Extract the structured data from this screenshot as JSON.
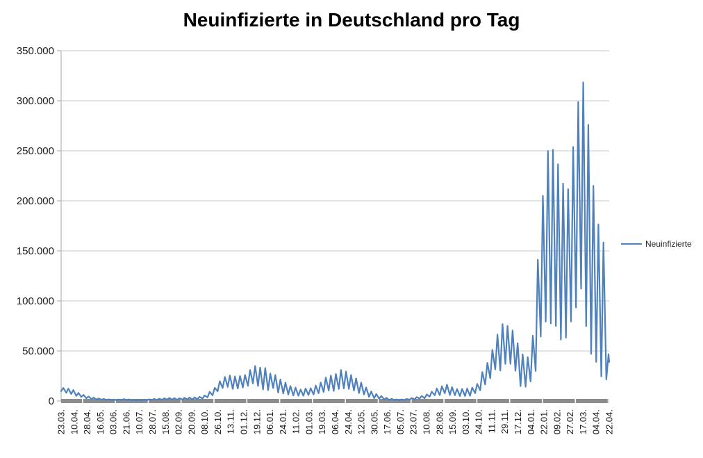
{
  "title": "Neuinfizierte in Deutschland pro Tag",
  "legend": {
    "label": "Neuinfizierte"
  },
  "colors": {
    "series": "#4F81BD",
    "gridline": "#C9C9C9",
    "axis_line": "#A6A6A6",
    "x_axis_band": "#8C8C8C",
    "tick_text": "#1a1a1a",
    "title_text": "#000000",
    "background": "#FFFFFF"
  },
  "chart_data": {
    "type": "line",
    "title": "Neuinfizierte in Deutschland pro Tag",
    "ylabel": "",
    "xlabel": "",
    "ylim": [
      0,
      350000
    ],
    "y_tick_step": 50000,
    "y_tick_labels": [
      "0",
      "50.000",
      "100.000",
      "150.000",
      "200.000",
      "250.000",
      "300.000",
      "350.000"
    ],
    "x_tick_labels": [
      "23.03.",
      "10.04.",
      "28.04.",
      "16.05.",
      "03.06.",
      "21.06.",
      "10.07.",
      "28.07.",
      "15.08.",
      "02.09.",
      "20.09.",
      "08.10.",
      "26.10.",
      "13.11.",
      "01.12.",
      "19.12.",
      "06.01.",
      "24.01.",
      "11.02.",
      "01.03.",
      "19.03.",
      "06.04.",
      "24.04.",
      "12.05.",
      "30.05.",
      "17.06.",
      "05.07.",
      "23.07.",
      "10.08.",
      "28.08.",
      "15.09.",
      "03.10.",
      "24.10.",
      "11.11.",
      "29.11.",
      "17.12.",
      "04.01.",
      "22.01.",
      "09.02.",
      "27.02.",
      "17.03.",
      "04.04.",
      "22.04."
    ],
    "grid": "horizontal",
    "legend_position": "right",
    "series": [
      {
        "name": "Neuinfizierte",
        "weekly_min_max": [
          [
            9800,
            13100
          ],
          [
            8200,
            12400
          ],
          [
            7100,
            11000
          ],
          [
            5100,
            8100
          ],
          [
            4000,
            6100
          ],
          [
            2800,
            4500
          ],
          [
            2000,
            3300
          ],
          [
            1500,
            2500
          ],
          [
            1300,
            2100
          ],
          [
            1100,
            1700
          ],
          [
            900,
            1400
          ],
          [
            800,
            1500
          ],
          [
            900,
            1900
          ],
          [
            800,
            1600
          ],
          [
            700,
            1200
          ],
          [
            600,
            1100
          ],
          [
            700,
            1300
          ],
          [
            800,
            1700
          ],
          [
            1000,
            2100
          ],
          [
            1100,
            2300
          ],
          [
            1200,
            2700
          ],
          [
            1400,
            3100
          ],
          [
            1300,
            2900
          ],
          [
            1200,
            2800
          ],
          [
            1400,
            3200
          ],
          [
            1600,
            3500
          ],
          [
            1600,
            3600
          ],
          [
            1900,
            4200
          ],
          [
            2400,
            5600
          ],
          [
            3600,
            9200
          ],
          [
            5700,
            13200
          ],
          [
            9700,
            19800
          ],
          [
            13000,
            24000
          ],
          [
            14100,
            25500
          ],
          [
            12000,
            24600
          ],
          [
            12400,
            25000
          ],
          [
            13500,
            26000
          ],
          [
            15200,
            31000
          ],
          [
            17500,
            35000
          ],
          [
            15000,
            33500
          ],
          [
            11500,
            33000
          ],
          [
            10800,
            27500
          ],
          [
            13000,
            26000
          ],
          [
            8500,
            21500
          ],
          [
            7500,
            18500
          ],
          [
            6500,
            15000
          ],
          [
            5500,
            13500
          ],
          [
            5300,
            11500
          ],
          [
            5300,
            12500
          ],
          [
            6000,
            12800
          ],
          [
            6500,
            15500
          ],
          [
            7800,
            18500
          ],
          [
            9000,
            23500
          ],
          [
            10500,
            25500
          ],
          [
            10000,
            27000
          ],
          [
            12000,
            31000
          ],
          [
            12500,
            29500
          ],
          [
            12000,
            26000
          ],
          [
            10500,
            22500
          ],
          [
            8000,
            18500
          ],
          [
            6500,
            13500
          ],
          [
            4200,
            9500
          ],
          [
            2800,
            7000
          ],
          [
            2200,
            5000
          ],
          [
            1500,
            3200
          ],
          [
            1000,
            2200
          ],
          [
            800,
            1600
          ],
          [
            800,
            1600
          ],
          [
            900,
            2100
          ],
          [
            1300,
            2900
          ],
          [
            1700,
            3900
          ],
          [
            2400,
            5100
          ],
          [
            2800,
            6600
          ],
          [
            4400,
            9400
          ],
          [
            5700,
            12600
          ],
          [
            5800,
            14700
          ],
          [
            7700,
            16400
          ],
          [
            6000,
            13900
          ],
          [
            5700,
            12000
          ],
          [
            4900,
            12100
          ],
          [
            5000,
            12500
          ],
          [
            5200,
            13400
          ],
          [
            7800,
            17100
          ],
          [
            10700,
            29000
          ],
          [
            16500,
            38100
          ],
          [
            22800,
            51200
          ],
          [
            31600,
            66400
          ],
          [
            30400,
            76900
          ],
          [
            37100,
            75000
          ],
          [
            37100,
            70600
          ],
          [
            30300,
            57700
          ],
          [
            14900,
            46700
          ],
          [
            14300,
            43800
          ],
          [
            19500,
            65300
          ],
          [
            30000,
            141200
          ],
          [
            64400,
            205100
          ],
          [
            79300,
            249800
          ],
          [
            77500,
            251000
          ],
          [
            74900,
            236600
          ],
          [
            61300,
            217300
          ],
          [
            63300,
            211700
          ],
          [
            79400,
            253800
          ],
          [
            93300,
            298800
          ],
          [
            112200,
            318400
          ],
          [
            74800,
            275900
          ],
          [
            47100,
            214900
          ],
          [
            39000,
            176500
          ],
          [
            24500,
            158400
          ],
          [
            21500,
            46800
          ]
        ],
        "weekly_min_max_note": "each pair = [weekly reporting low, weekly reporting high] of daily new infections; weeks run left to right from first x tick 23.03. to last 22.04.",
        "final_value": 39000
      }
    ]
  }
}
